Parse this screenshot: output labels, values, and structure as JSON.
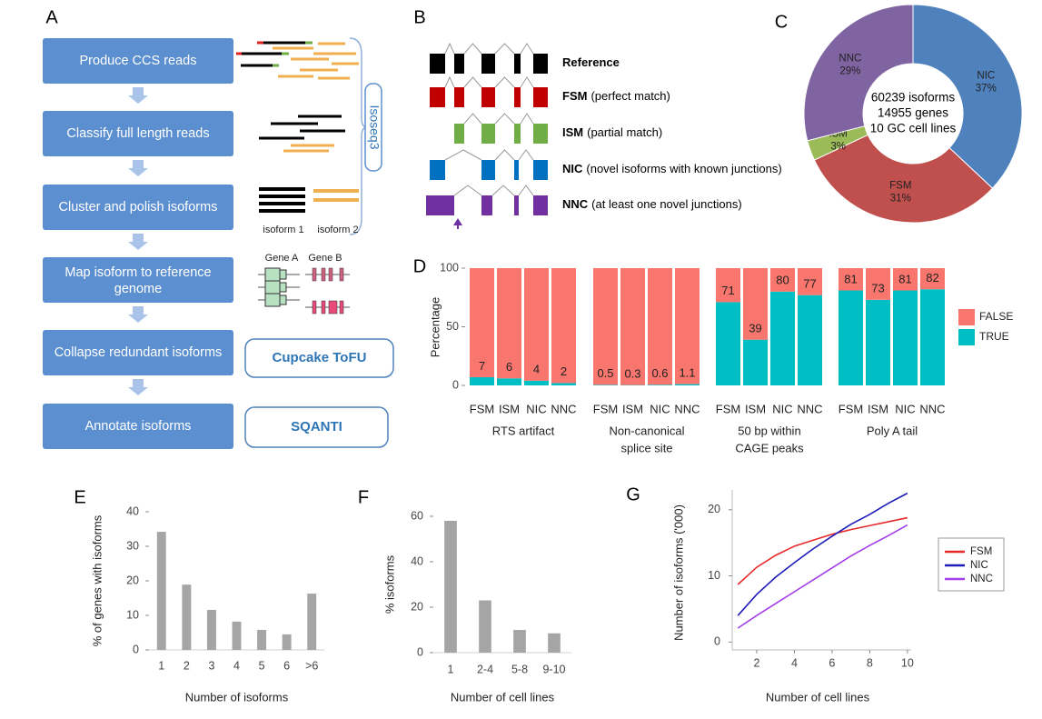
{
  "panel_labels": [
    "A",
    "B",
    "C",
    "D",
    "E",
    "F",
    "G"
  ],
  "workflow": {
    "steps": [
      "Produce CCS reads",
      "Classify full length reads",
      "Cluster and polish isoforms",
      [
        "Map isoform to reference",
        "genome"
      ],
      "Collapse redundant isoforms",
      "Annotate isoforms"
    ],
    "pipeline": "Isoseq3",
    "tools": [
      "Cupcake ToFU",
      "SQANTI"
    ],
    "isoform_labels": [
      "isoform 1",
      "isoform 2"
    ],
    "gene_labels": [
      "Gene A",
      "Gene B"
    ]
  },
  "isoform_classes": [
    {
      "code": "Reference"
    },
    {
      "code": "FSM",
      "description": "(perfect match)"
    },
    {
      "code": "ISM",
      "description": "(partial match)"
    },
    {
      "code": "NIC",
      "description": "(novel isoforms with known junctions)"
    },
    {
      "code": "NNC",
      "description": "(at least one novel junctions)"
    }
  ],
  "chart_data": [
    {
      "type": "pie",
      "donut": true,
      "center_text": [
        "60239 isoforms",
        "14955 genes",
        "10 GC cell lines"
      ],
      "categories": [
        "NIC",
        "FSM",
        "ISM",
        "NNC"
      ],
      "values": [
        37,
        31,
        3,
        29
      ],
      "value_labels": [
        "37%",
        "31%",
        "3%",
        "29%"
      ],
      "colors": [
        "#4f81bd",
        "#c0504d",
        "#9bbb59",
        "#8064a2"
      ]
    },
    {
      "type": "bar",
      "stacked": true,
      "ylabel": "Percentage",
      "ylim": [
        0,
        100
      ],
      "yticks": [
        0,
        50,
        100
      ],
      "categories": [
        "FSM",
        "ISM",
        "NIC",
        "NNC"
      ],
      "legend": "right",
      "series": [
        {
          "name": "FALSE",
          "color": "#f8766d"
        },
        {
          "name": "TRUE",
          "color": "#00bfc4"
        }
      ],
      "facets": [
        {
          "title": [
            "RTS artifact"
          ],
          "series": [
            {
              "values": [
                93,
                94,
                96,
                98
              ]
            },
            {
              "values": [
                7,
                6,
                4,
                2
              ]
            }
          ]
        },
        {
          "title": [
            "Non-canonical",
            "splice site"
          ],
          "series": [
            {
              "values": [
                99.5,
                99.7,
                99.4,
                98.9
              ]
            },
            {
              "values": [
                0.5,
                0.3,
                0.6,
                1.1
              ]
            }
          ]
        },
        {
          "title": [
            "50 bp within",
            "CAGE peaks"
          ],
          "series": [
            {
              "values": [
                29,
                61,
                20,
                23
              ]
            },
            {
              "values": [
                71,
                39,
                80,
                77
              ]
            }
          ]
        },
        {
          "title": [
            "Poly A tail"
          ],
          "series": [
            {
              "values": [
                19,
                27,
                19,
                18
              ]
            },
            {
              "values": [
                81,
                73,
                81,
                82
              ]
            }
          ]
        }
      ]
    },
    {
      "type": "bar",
      "ylabel": "% of genes with isoforms",
      "xlabel": "Number of isoforms",
      "categories": [
        "1",
        "2",
        "3",
        "4",
        "5",
        "6",
        ">6"
      ],
      "values": [
        34.2,
        18.9,
        11.6,
        8.2,
        5.8,
        4.5,
        16.3
      ],
      "color": "#a5a5a5",
      "ylim": [
        0,
        40
      ],
      "yticks": [
        0,
        10,
        20,
        30,
        40
      ]
    },
    {
      "type": "bar",
      "ylabel": "% isoforms",
      "xlabel": "Number of cell lines",
      "categories": [
        "1",
        "2-4",
        "5-8",
        "9-10"
      ],
      "values": [
        58,
        23,
        10,
        8.5
      ],
      "color": "#a5a5a5",
      "ylim": [
        0,
        60
      ],
      "yticks": [
        0,
        20,
        40,
        60
      ]
    },
    {
      "type": "line",
      "ylabel": "Number of isoforms ('000)",
      "xlabel": "Number of cell lines",
      "x": [
        1,
        2,
        3,
        4,
        5,
        6,
        7,
        8,
        9,
        10
      ],
      "xlim": [
        0.7,
        10.2
      ],
      "xticks": [
        2,
        4,
        6,
        8,
        10
      ],
      "ylim": [
        -1.2,
        23
      ],
      "yticks": [
        0,
        10,
        20
      ],
      "legend": "right",
      "series": [
        {
          "name": "FSM",
          "color": "#e8292a",
          "values": [
            8.7,
            11.3,
            13.1,
            14.5,
            15.4,
            16.3,
            17,
            17.6,
            18.2,
            18.8
          ]
        },
        {
          "name": "NIC",
          "color": "#1c1cb8",
          "values": [
            4,
            7.2,
            9.8,
            12,
            14.1,
            16,
            17.8,
            19.3,
            21,
            22.5
          ]
        },
        {
          "name": "NNC",
          "color": "#a33ee8",
          "values": [
            2.1,
            4,
            5.8,
            7.6,
            9.4,
            11.2,
            13,
            14.6,
            16.1,
            17.7
          ]
        }
      ]
    }
  ]
}
